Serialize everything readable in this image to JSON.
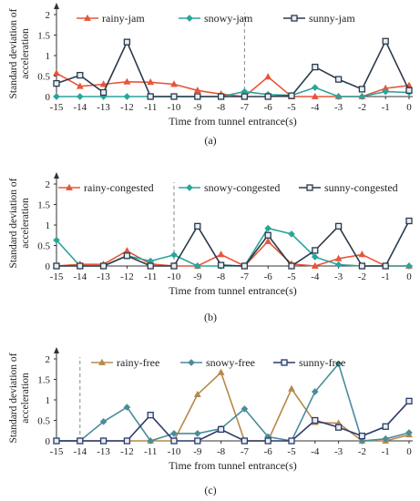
{
  "chart_data": [
    {
      "type": "line",
      "panel_label": "(a)",
      "xlabel": "Time from tunnel entrance(s)",
      "ylabel": "Standard deviation of acceleration",
      "x": [
        -15,
        -14,
        -13,
        -12,
        -11,
        -10,
        -9,
        -8,
        -7,
        -6,
        -5,
        -4,
        -3,
        -2,
        -1,
        0
      ],
      "xlim": [
        -15,
        0
      ],
      "ylim": [
        0,
        2
      ],
      "yticks": [
        0,
        0.5,
        1,
        1.5,
        2
      ],
      "dashed_line_x": -7,
      "legend_position": "top",
      "series": [
        {
          "name": "rainy-jam",
          "color": "#e8553a",
          "marker": "triangle",
          "values": [
            0.57,
            0.25,
            0.3,
            0.36,
            0.35,
            0.3,
            0.15,
            0.06,
            0.0,
            0.48,
            0.0,
            0.0,
            0.0,
            0.0,
            0.2,
            0.27
          ]
        },
        {
          "name": "snowy-jam",
          "color": "#2aa59a",
          "marker": "diamond",
          "values": [
            0.0,
            0.0,
            0.0,
            0.0,
            0.0,
            0.0,
            0.0,
            0.0,
            0.12,
            0.05,
            0.03,
            0.22,
            0.0,
            0.0,
            0.12,
            0.1
          ]
        },
        {
          "name": "sunny-jam",
          "color": "#2b3a4a",
          "marker": "square",
          "values": [
            0.32,
            0.52,
            0.1,
            1.33,
            0.0,
            0.0,
            0.0,
            0.0,
            0.0,
            0.0,
            0.02,
            0.72,
            0.42,
            0.18,
            1.35,
            0.15
          ]
        }
      ]
    },
    {
      "type": "line",
      "panel_label": "(b)",
      "xlabel": "Time from tunnel entrance(s)",
      "ylabel": "Standard deviation of acceleration",
      "x": [
        -15,
        -14,
        -13,
        -12,
        -11,
        -10,
        -9,
        -8,
        -7,
        -6,
        -5,
        -4,
        -3,
        -2,
        -1,
        0
      ],
      "xlim": [
        -15,
        0
      ],
      "ylim": [
        0,
        2
      ],
      "yticks": [
        0,
        0.5,
        1,
        1.5,
        2
      ],
      "dashed_line_x": -10,
      "legend_position": "top",
      "series": [
        {
          "name": "rainy-congested",
          "color": "#e8553a",
          "marker": "triangle",
          "values": [
            0.0,
            0.04,
            0.04,
            0.37,
            0.05,
            0.0,
            0.0,
            0.28,
            0.0,
            0.6,
            0.05,
            0.0,
            0.18,
            0.28,
            0.0,
            0.0
          ]
        },
        {
          "name": "snowy-congested",
          "color": "#2aa59a",
          "marker": "diamond",
          "values": [
            0.63,
            0.0,
            0.0,
            0.25,
            0.12,
            0.27,
            0.0,
            0.0,
            0.0,
            0.92,
            0.78,
            0.22,
            0.03,
            0.0,
            0.0,
            0.0
          ]
        },
        {
          "name": "sunny-congested",
          "color": "#2b3a4a",
          "marker": "square",
          "values": [
            0.0,
            0.0,
            0.0,
            0.25,
            0.0,
            0.0,
            0.97,
            0.02,
            0.0,
            0.75,
            0.0,
            0.38,
            0.97,
            0.0,
            0.0,
            1.1
          ]
        }
      ]
    },
    {
      "type": "line",
      "panel_label": "(c)",
      "xlabel": "Time from tunnel entrance(s)",
      "ylabel": "Standard deviation of acceleration",
      "x": [
        -15,
        -14,
        -13,
        -12,
        -11,
        -10,
        -9,
        -8,
        -7,
        -6,
        -5,
        -4,
        -3,
        -2,
        -1,
        0
      ],
      "xlim": [
        -15,
        0
      ],
      "ylim": [
        0,
        2
      ],
      "yticks": [
        0,
        0.5,
        1,
        1.5,
        2
      ],
      "dashed_line_x": -14,
      "legend_position": "top",
      "series": [
        {
          "name": "rainy-free",
          "color": "#b5894a",
          "marker": "triangle",
          "values": [
            0.0,
            0.0,
            0.0,
            0.0,
            0.0,
            0.0,
            1.13,
            1.67,
            0.0,
            0.0,
            1.27,
            0.45,
            0.43,
            0.0,
            0.0,
            0.15
          ]
        },
        {
          "name": "snowy-free",
          "color": "#4a8c9a",
          "marker": "diamond",
          "values": [
            0.0,
            0.0,
            0.47,
            0.82,
            0.0,
            0.18,
            0.18,
            0.3,
            0.78,
            0.1,
            0.0,
            1.2,
            1.88,
            0.0,
            0.05,
            0.2
          ]
        },
        {
          "name": "sunny-free",
          "color": "#2b3a6a",
          "marker": "square",
          "values": [
            0.0,
            0.0,
            0.0,
            0.0,
            0.63,
            0.0,
            0.0,
            0.28,
            0.0,
            0.0,
            0.0,
            0.5,
            0.33,
            0.12,
            0.35,
            0.97
          ]
        }
      ]
    }
  ]
}
